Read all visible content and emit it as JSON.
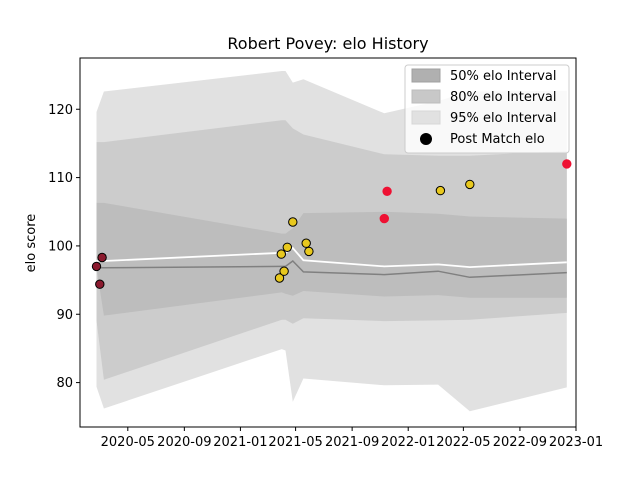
{
  "chart_data": {
    "type": "line",
    "title": "Robert Povey: elo History",
    "xlabel": "",
    "ylabel": "elo score",
    "xlim": [
      "2020-01-18",
      "2023-01-01"
    ],
    "ylim": [
      73.5,
      127.5
    ],
    "x_ticks": [
      "2020-05",
      "2020-09",
      "2021-01",
      "2021-05",
      "2021-09",
      "2022-01",
      "2022-05",
      "2022-09",
      "2023-01"
    ],
    "y_ticks": [
      80,
      90,
      100,
      110,
      120
    ],
    "grid": false,
    "legend_position": "top-right",
    "legend": [
      "50% elo Interval",
      "80% elo Interval",
      "95% elo Interval",
      "Post Match elo"
    ],
    "colors": {
      "band50": "#b0b0b0",
      "band80": "#c8c8c8",
      "band95": "#e1e1e1",
      "median_line": "#808080",
      "mean_line": "#ffffff",
      "win": "#e8c81e",
      "loss": "#ee1133",
      "draw": "#8b1a2e"
    },
    "interval_series": [
      {
        "date": "2020-02-23",
        "q025": 79.4,
        "q10": 89.1,
        "q25": 96.8,
        "median": 96.8,
        "q75": 106.3,
        "q90": 115.2,
        "q975": 119.6,
        "mean": 97.8
      },
      {
        "date": "2020-03-10",
        "q025": 76.2,
        "q10": 80.4,
        "q25": 89.8,
        "median": 96.8,
        "q75": 106.3,
        "q90": 115.2,
        "q975": 122.6,
        "mean": 97.8
      },
      {
        "date": "2021-04-01",
        "q025": 84.9,
        "q10": 89.2,
        "q25": 93.2,
        "median": 97.0,
        "q75": 101.8,
        "q90": 118.4,
        "q975": 125.6,
        "mean": 99.0
      },
      {
        "date": "2021-04-09",
        "q025": 84.7,
        "q10": 89.2,
        "q25": 93.0,
        "median": 97.0,
        "q75": 101.8,
        "q90": 118.4,
        "q975": 125.6,
        "mean": 99.0
      },
      {
        "date": "2021-04-25",
        "q025": 77.2,
        "q10": 88.6,
        "q25": 92.7,
        "median": 97.8,
        "q75": 102.6,
        "q90": 117.2,
        "q975": 123.9,
        "mean": 99.7
      },
      {
        "date": "2021-05-18",
        "q025": 80.6,
        "q10": 89.4,
        "q25": 93.4,
        "median": 96.2,
        "q75": 104.8,
        "q90": 116.3,
        "q975": 124.4,
        "mean": 97.9
      },
      {
        "date": "2021-11-10",
        "q025": 79.6,
        "q10": 89.0,
        "q25": 92.6,
        "median": 95.8,
        "q75": 105.0,
        "q90": 113.4,
        "q975": 119.4,
        "mean": 97.0
      },
      {
        "date": "2022-03-07",
        "q025": 79.7,
        "q10": 89.1,
        "q25": 92.8,
        "median": 96.3,
        "q75": 104.7,
        "q90": 113.2,
        "q975": 121.2,
        "mean": 97.3
      },
      {
        "date": "2022-05-15",
        "q025": 75.8,
        "q10": 89.2,
        "q25": 92.4,
        "median": 95.4,
        "q75": 104.3,
        "q90": 113.2,
        "q975": 122.6,
        "mean": 96.9
      },
      {
        "date": "2022-12-12",
        "q025": 79.3,
        "q10": 90.2,
        "q25": 92.4,
        "median": 96.1,
        "q75": 104.0,
        "q90": 113.9,
        "q975": 122.7,
        "mean": 97.6
      }
    ],
    "matches": [
      {
        "date": "2020-02-23",
        "elo": 97.0,
        "result": "draw"
      },
      {
        "date": "2020-03-01",
        "elo": 94.4,
        "result": "draw"
      },
      {
        "date": "2020-03-06",
        "elo": 98.3,
        "result": "draw"
      },
      {
        "date": "2021-03-27",
        "elo": 95.3,
        "result": "win"
      },
      {
        "date": "2021-03-31",
        "elo": 98.8,
        "result": "win"
      },
      {
        "date": "2021-04-06",
        "elo": 96.3,
        "result": "win"
      },
      {
        "date": "2021-04-13",
        "elo": 99.8,
        "result": "win"
      },
      {
        "date": "2021-04-25",
        "elo": 103.5,
        "result": "win"
      },
      {
        "date": "2021-05-24",
        "elo": 100.4,
        "result": "win"
      },
      {
        "date": "2021-05-30",
        "elo": 99.2,
        "result": "win"
      },
      {
        "date": "2021-11-10",
        "elo": 104.0,
        "result": "loss"
      },
      {
        "date": "2021-11-16",
        "elo": 108.0,
        "result": "loss"
      },
      {
        "date": "2022-03-12",
        "elo": 108.1,
        "result": "win"
      },
      {
        "date": "2022-05-15",
        "elo": 109.0,
        "result": "win"
      },
      {
        "date": "2022-12-12",
        "elo": 112.0,
        "result": "loss"
      }
    ]
  }
}
